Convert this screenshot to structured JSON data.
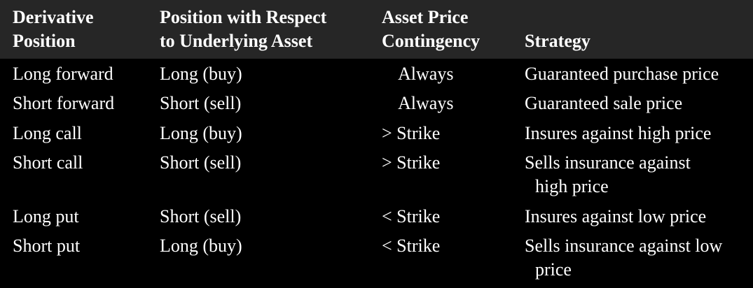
{
  "header": {
    "col1_line1": "Derivative",
    "col1_line2": "Position",
    "col2_line1": "Position with Respect",
    "col2_line2": "to Underlying Asset",
    "col3_line1": "Asset Price",
    "col3_line2": "Contingency",
    "col4": "Strategy"
  },
  "rows": [
    {
      "position": "Long forward",
      "underlying": "Long (buy)",
      "contingency": "Always",
      "strategy": "Guaranteed purchase price",
      "strategy_cont": ""
    },
    {
      "position": "Short forward",
      "underlying": "Short (sell)",
      "contingency": "Always",
      "strategy": "Guaranteed sale price",
      "strategy_cont": ""
    },
    {
      "position": "Long call",
      "underlying": "Long (buy)",
      "contingency": "> Strike",
      "strategy": "Insures against high price",
      "strategy_cont": ""
    },
    {
      "position": "Short call",
      "underlying": "Short (sell)",
      "contingency": "> Strike",
      "strategy": "Sells insurance against",
      "strategy_cont": "high price"
    },
    {
      "position": "Long put",
      "underlying": "Short (sell)",
      "contingency": "< Strike",
      "strategy": "Insures against low price",
      "strategy_cont": ""
    },
    {
      "position": "Short put",
      "underlying": "Long (buy)",
      "contingency": "< Strike",
      "strategy": "Sells insurance against low",
      "strategy_cont": "price"
    }
  ],
  "colors": {
    "background": "#000000",
    "header_background": "#262626",
    "text": "#ffffff"
  }
}
